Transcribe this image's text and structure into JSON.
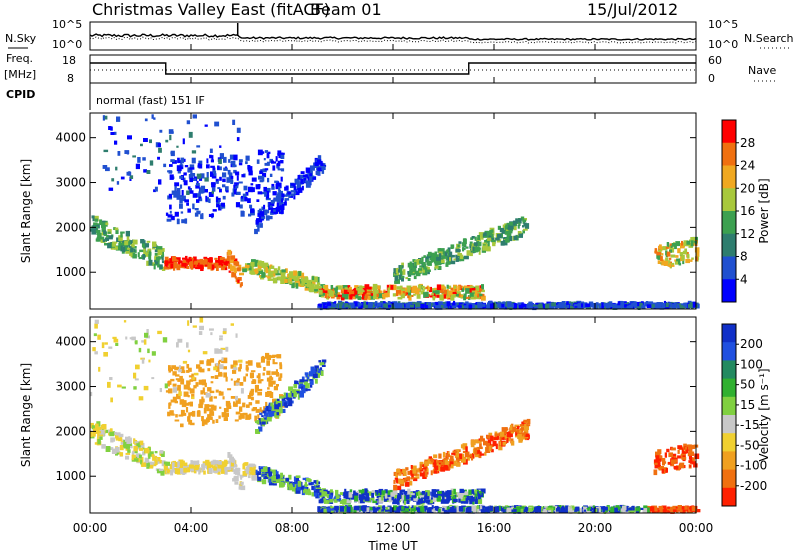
{
  "header": {
    "title": "Christmas Valley East (fitACF)",
    "beam": "Beam 01",
    "date": "15/Jul/2012"
  },
  "status_panels": {
    "nsky_label": "N.Sky",
    "nsearch_label": "N.Search",
    "noise_ticks": [
      "10^5",
      "10^0"
    ],
    "freq_label": "Freq.",
    "freq_unit": "[MHz]",
    "freq_ticks": [
      "18",
      "8"
    ],
    "nave_label": "Nave",
    "nave_ticks": [
      "60",
      "0"
    ],
    "cpid_label": "CPID",
    "cpid_text": "normal (fast) 151 IF"
  },
  "chart_data": [
    {
      "type": "heatmap",
      "name": "power",
      "ylabel": "Slant Range [km]",
      "y_ticks": [
        1000,
        2000,
        3000,
        4000
      ],
      "ylim": [
        180,
        4550
      ],
      "colorbar": {
        "label": "Power [dB]",
        "ticks": [
          4,
          8,
          12,
          16,
          20,
          24,
          28
        ],
        "colors": [
          "#0000ff",
          "#2050d0",
          "#2e7d6e",
          "#3ca050",
          "#a8c83c",
          "#f0a820",
          "#f07010",
          "#ff0000"
        ]
      }
    },
    {
      "type": "heatmap",
      "name": "velocity",
      "ylabel": "Slant Range [km]",
      "y_ticks": [
        1000,
        2000,
        3000,
        4000
      ],
      "ylim": [
        180,
        4550
      ],
      "colorbar": {
        "label": "Velocity [m s⁻¹]",
        "ticks": [
          "200",
          "100",
          "50",
          "15",
          "-15",
          "-50",
          "-100",
          "-200"
        ],
        "colors": [
          "#1030c8",
          "#2050e0",
          "#228a60",
          "#30b030",
          "#80d040",
          "#c8c8c8",
          "#f0d030",
          "#f0a020",
          "#f07010",
          "#ff2000"
        ]
      }
    }
  ],
  "x_axis": {
    "label": "Time UT",
    "ticks": [
      "00:00",
      "04:00",
      "08:00",
      "12:00",
      "16:00",
      "20:00",
      "00:00"
    ],
    "range_hours": [
      0,
      24
    ]
  }
}
